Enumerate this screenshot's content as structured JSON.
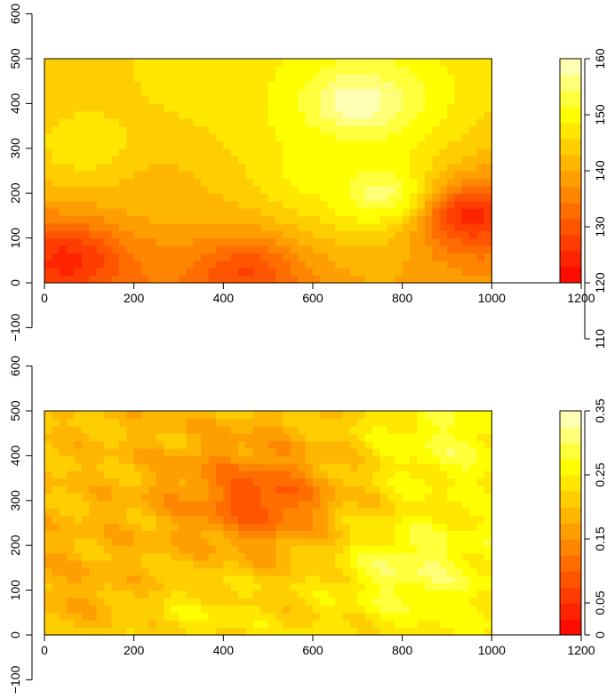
{
  "chart_data": [
    {
      "type": "heatmap",
      "panel": "top",
      "xlim": [
        0,
        1200
      ],
      "ylim": [
        -100,
        600
      ],
      "data_x_extent": [
        0,
        1000
      ],
      "data_y_extent": [
        0,
        500
      ],
      "x_ticks": [
        0,
        200,
        400,
        600,
        800,
        1000,
        1200
      ],
      "y_ticks": [
        -100,
        0,
        100,
        200,
        300,
        400,
        500,
        600
      ],
      "x_tick_labels": [
        "0",
        "200",
        "400",
        "600",
        "800",
        "1000",
        "1200"
      ],
      "y_tick_labels": [
        "−100",
        "0",
        "100",
        "200",
        "300",
        "400",
        "500",
        "600"
      ],
      "colorbar": {
        "range": [
          120,
          160
        ],
        "axis_range": [
          110,
          160
        ],
        "ticks": [
          110,
          120,
          130,
          140,
          150,
          160
        ],
        "tick_labels": [
          "110",
          "120",
          "130",
          "140",
          "150",
          "160"
        ],
        "levels": 14
      },
      "palette": "heat",
      "features": [
        {
          "x": 700,
          "y": 400,
          "value": 160
        },
        {
          "x": 750,
          "y": 200,
          "value": 156
        },
        {
          "x": 600,
          "y": 250,
          "value": 150
        },
        {
          "x": 400,
          "y": 470,
          "value": 148
        },
        {
          "x": 100,
          "y": 300,
          "value": 148
        },
        {
          "x": 250,
          "y": 220,
          "value": 142
        },
        {
          "x": 50,
          "y": 50,
          "value": 124
        },
        {
          "x": 950,
          "y": 150,
          "value": 124
        },
        {
          "x": 450,
          "y": 20,
          "value": 128
        }
      ]
    },
    {
      "type": "heatmap",
      "panel": "bottom",
      "xlim": [
        0,
        1200
      ],
      "ylim": [
        -100,
        600
      ],
      "data_x_extent": [
        0,
        1000
      ],
      "data_y_extent": [
        0,
        500
      ],
      "x_ticks": [
        0,
        200,
        400,
        600,
        800,
        1000,
        1200
      ],
      "y_ticks": [
        -100,
        0,
        100,
        200,
        300,
        400,
        500,
        600
      ],
      "x_tick_labels": [
        "0",
        "200",
        "400",
        "600",
        "800",
        "1000",
        "1200"
      ],
      "y_tick_labels": [
        "−100",
        "0",
        "100",
        "200",
        "300",
        "400",
        "500",
        "600"
      ],
      "colorbar": {
        "range": [
          0,
          0.35
        ],
        "axis_range": [
          0,
          0.35
        ],
        "ticks": [
          0,
          0.05,
          0.15,
          0.25,
          0.35
        ],
        "tick_labels": [
          "0",
          "0.05",
          "0.15",
          "0.25",
          "0.35"
        ],
        "levels": 14
      },
      "palette": "heat",
      "features": [
        {
          "x": 820,
          "y": 150,
          "value": 0.3
        },
        {
          "x": 900,
          "y": 430,
          "value": 0.28
        },
        {
          "x": 350,
          "y": 40,
          "value": 0.24
        },
        {
          "x": 50,
          "y": 450,
          "value": 0.2
        },
        {
          "x": 80,
          "y": 120,
          "value": 0.18
        },
        {
          "x": 480,
          "y": 300,
          "value": 0.08
        }
      ]
    }
  ]
}
